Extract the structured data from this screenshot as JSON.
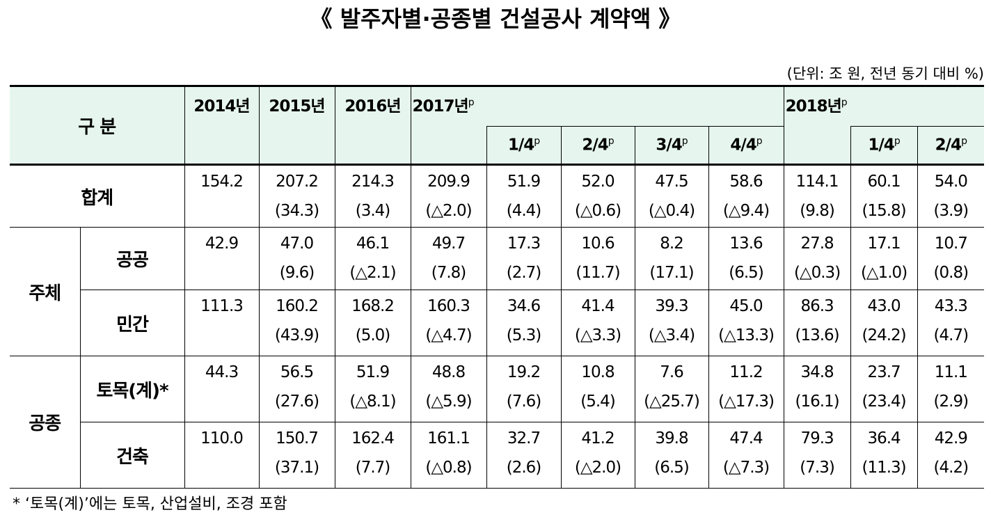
{
  "header": {
    "title": "《 발주자별·공종별 건설공사 계약액 》",
    "unit": "(단위: 조 원, 전년 동기 대비 %)"
  },
  "table": {
    "corner": "구 분",
    "years": [
      {
        "label": "2014년"
      },
      {
        "label": "2015년"
      },
      {
        "label": "2016년"
      },
      {
        "label": "2017년",
        "sup": "p"
      },
      {
        "label": "2018년",
        "sup": "p"
      }
    ],
    "quarters_2017": [
      {
        "label": "1/4",
        "sup": "p"
      },
      {
        "label": "2/4",
        "sup": "p"
      },
      {
        "label": "3/4",
        "sup": "p"
      },
      {
        "label": "4/4",
        "sup": "p"
      }
    ],
    "quarters_2018": [
      {
        "label": "1/4",
        "sup": "p"
      },
      {
        "label": "2/4",
        "sup": "p"
      }
    ],
    "groups": [
      "주체",
      "공종"
    ],
    "rows": [
      {
        "label": "합계",
        "values": [
          "154.2",
          "207.2",
          "214.3",
          "209.9",
          "51.9",
          "52.0",
          "47.5",
          "58.6",
          "114.1",
          "60.1",
          "54.0"
        ],
        "changes": [
          null,
          "(34.3)",
          "(3.4)",
          "(△2.0)",
          "(4.4)",
          "(△0.6)",
          "(△0.4)",
          "(△9.4)",
          "(9.8)",
          "(15.8)",
          "(3.9)"
        ]
      },
      {
        "label": "공공",
        "values": [
          "42.9",
          "47.0",
          "46.1",
          "49.7",
          "17.3",
          "10.6",
          "8.2",
          "13.6",
          "27.8",
          "17.1",
          "10.7"
        ],
        "changes": [
          null,
          "(9.6)",
          "(△2.1)",
          "(7.8)",
          "(2.7)",
          "(11.7)",
          "(17.1)",
          "(6.5)",
          "(△0.3)",
          "(△1.0)",
          "(0.8)"
        ]
      },
      {
        "label": "민간",
        "values": [
          "111.3",
          "160.2",
          "168.2",
          "160.3",
          "34.6",
          "41.4",
          "39.3",
          "45.0",
          "86.3",
          "43.0",
          "43.3"
        ],
        "changes": [
          null,
          "(43.9)",
          "(5.0)",
          "(△4.7)",
          "(5.3)",
          "(△3.3)",
          "(△3.4)",
          "(△13.3)",
          "(13.6)",
          "(24.2)",
          "(4.7)"
        ]
      },
      {
        "label": "토목(계)*",
        "values": [
          "44.3",
          "56.5",
          "51.9",
          "48.8",
          "19.2",
          "10.8",
          "7.6",
          "11.2",
          "34.8",
          "23.7",
          "11.1"
        ],
        "changes": [
          null,
          "(27.6)",
          "(△8.1)",
          "(△5.9)",
          "(7.6)",
          "(5.4)",
          "(△25.7)",
          "(△17.3)",
          "(16.1)",
          "(23.4)",
          "(2.9)"
        ]
      },
      {
        "label": "건축",
        "values": [
          "110.0",
          "150.7",
          "162.4",
          "161.1",
          "32.7",
          "41.2",
          "39.8",
          "47.4",
          "79.3",
          "36.4",
          "42.9"
        ],
        "changes": [
          null,
          "(37.1)",
          "(7.7)",
          "(△0.8)",
          "(2.6)",
          "(△2.0)",
          "(6.5)",
          "(△7.3)",
          "(7.3)",
          "(11.3)",
          "(4.2)"
        ]
      }
    ]
  },
  "footnote": "* ‘토목(계)’에는 토목, 산업설비, 조경 포함"
}
